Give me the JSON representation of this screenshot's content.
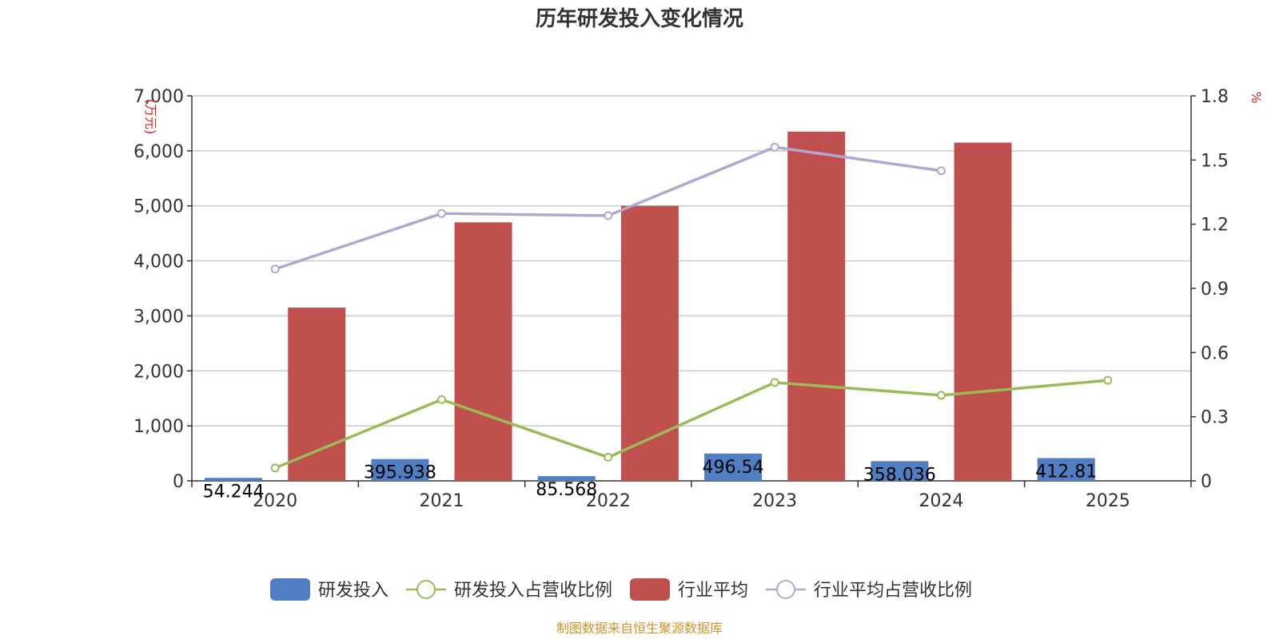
{
  "chart_data": {
    "type": "bar",
    "title": "历年研发投入变化情况",
    "categories": [
      "2020",
      "2021",
      "2022",
      "2023",
      "2024",
      "2025"
    ],
    "y_left": {
      "unit": "(万元)",
      "range": [
        0,
        7000
      ],
      "ticks": [
        "0",
        "1,000",
        "2,000",
        "3,000",
        "4,000",
        "5,000",
        "6,000",
        "7,000"
      ]
    },
    "y_right": {
      "unit": "%",
      "range": [
        0,
        1.8
      ],
      "ticks": [
        "0",
        "0.3",
        "0.6",
        "0.9",
        "1.2",
        "1.5",
        "1.8"
      ]
    },
    "grid": true,
    "legend_position": "bottom",
    "series": [
      {
        "name": "研发投入",
        "kind": "bar",
        "axis": "left",
        "color": "#4f7fc2",
        "values": [
          54.244,
          395.938,
          85.568,
          496.54,
          358.036,
          412.81
        ],
        "labels": [
          "54.244",
          "395.938",
          "85.568",
          "496.54",
          "358.036",
          "412.81"
        ]
      },
      {
        "name": "研发投入占营收比例",
        "kind": "line",
        "axis": "right",
        "color": "#9bbb59",
        "values": [
          0.06,
          0.38,
          0.11,
          0.46,
          0.4,
          0.47
        ]
      },
      {
        "name": "行业平均",
        "kind": "bar",
        "axis": "left",
        "color": "#c0504d",
        "values": [
          3150,
          4700,
          5000,
          6350,
          6150,
          null
        ]
      },
      {
        "name": "行业平均占营收比例",
        "kind": "line",
        "axis": "right",
        "color": "#b3a7cf",
        "values": [
          0.99,
          1.25,
          1.24,
          1.56,
          1.45,
          null
        ]
      }
    ]
  },
  "footer": {
    "source": "制图数据来自恒生聚源数据库"
  }
}
